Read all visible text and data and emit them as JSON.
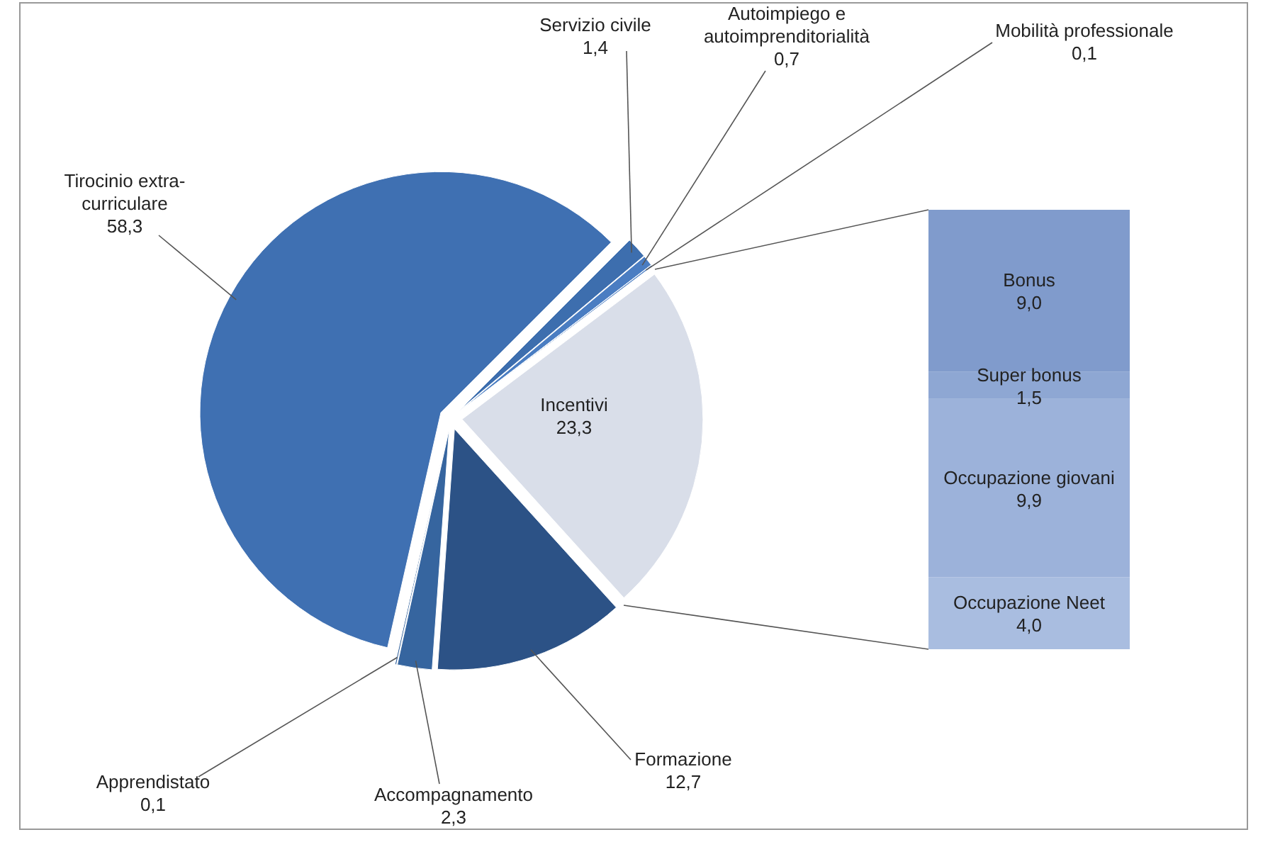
{
  "chart_data": [
    {
      "type": "pie",
      "categories": [
        "Servizio civile",
        "Autoimpiego e autoimprenditorialità",
        "Mobilità professionale",
        "Incentivi",
        "Formazione",
        "Accompagnamento",
        "Apprendistato",
        "Tirocinio extra-curriculare"
      ],
      "values": [
        1.4,
        0.7,
        0.1,
        23.3,
        12.7,
        2.3,
        0.1,
        58.3
      ],
      "value_labels": [
        "1,4",
        "0,7",
        "0,1",
        "23,3",
        "12,7",
        "2,3",
        "0,1",
        "58,3"
      ],
      "colors": [
        "#3d6eae",
        "#4a7dc2",
        "#4a7dc2",
        "#d9dee9",
        "#2c5286",
        "#36659f",
        "#36659f",
        "#3f70b2"
      ]
    },
    {
      "type": "bar",
      "stacked": true,
      "categories": [
        null
      ],
      "series": [
        {
          "name": "Occupazione Neet",
          "color": "#a9bde0",
          "values": [
            4.0
          ],
          "value_labels": [
            "4,0"
          ]
        },
        {
          "name": "Occupazione giovani",
          "color": "#9cb2da",
          "values": [
            9.9
          ],
          "value_labels": [
            "9,9"
          ]
        },
        {
          "name": "Super bonus",
          "color": "#8ea7d3",
          "values": [
            1.5
          ],
          "value_labels": [
            "1,5"
          ]
        },
        {
          "name": "Bonus",
          "color": "#809bcc",
          "values": [
            9.0
          ],
          "value_labels": [
            "9,0"
          ]
        }
      ]
    }
  ]
}
